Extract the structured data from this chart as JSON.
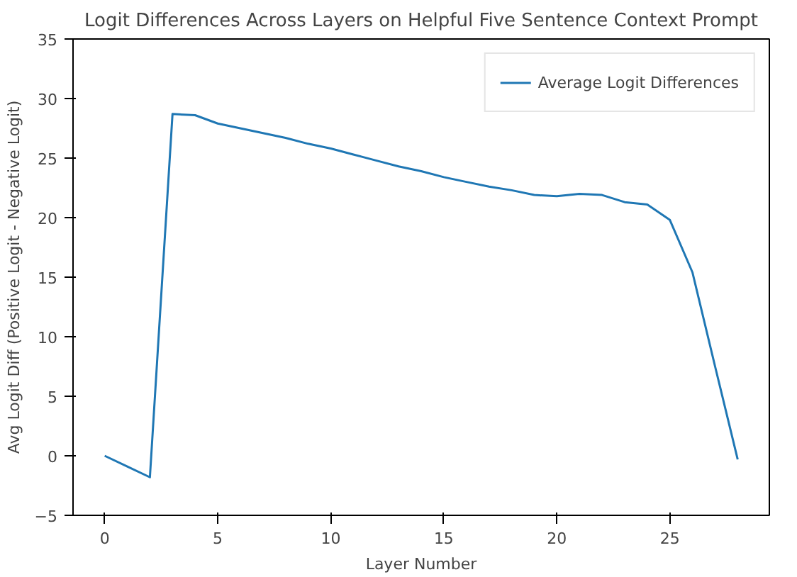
{
  "chart_data": {
    "type": "line",
    "title": "Logit Differences Across Layers on Helpful Five Sentence Context Prompt",
    "xlabel": "Layer Number",
    "ylabel": "Avg Logit Diff (Positive Logit - Negative Logit)",
    "x": [
      0,
      1,
      2,
      3,
      4,
      5,
      6,
      7,
      8,
      9,
      10,
      11,
      12,
      13,
      14,
      15,
      16,
      17,
      18,
      19,
      20,
      21,
      22,
      23,
      24,
      25,
      26,
      27,
      28
    ],
    "series": [
      {
        "name": "Average Logit Differences",
        "color": "#1f77b4",
        "values": [
          0,
          -0.9,
          -1.8,
          28.7,
          28.6,
          27.9,
          27.5,
          27.1,
          26.7,
          26.2,
          25.8,
          25.3,
          24.8,
          24.3,
          23.9,
          23.4,
          23.0,
          22.6,
          22.3,
          21.9,
          21.8,
          22.0,
          21.9,
          21.3,
          21.1,
          19.8,
          15.4,
          7.5,
          -0.3
        ]
      }
    ],
    "xlim": [
      -1.4,
      29.4
    ],
    "ylim": [
      -5,
      35
    ],
    "xticks": [
      0,
      5,
      10,
      15,
      20,
      25
    ],
    "yticks": [
      -5,
      0,
      5,
      10,
      15,
      20,
      25,
      30,
      35
    ],
    "grid": false,
    "legend": "top right",
    "marker": "none",
    "line_style": "solid"
  }
}
